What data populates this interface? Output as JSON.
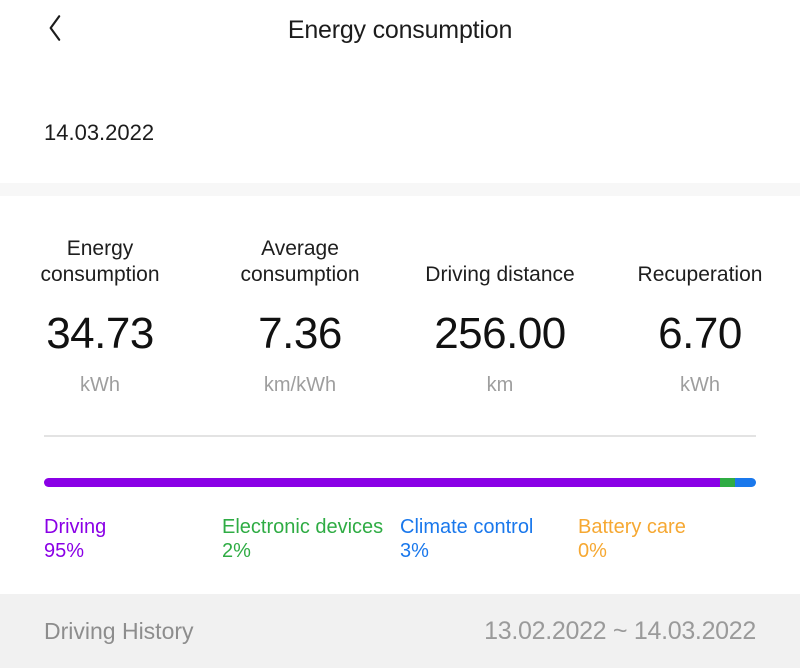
{
  "header": {
    "title": "Energy consumption"
  },
  "date_label": "14.03.2022",
  "stats": [
    {
      "label": "Energy consumption",
      "value": "34.73",
      "unit": "kWh"
    },
    {
      "label": "Average consumption",
      "value": "7.36",
      "unit": "km/kWh"
    },
    {
      "label": "Driving distance",
      "value": "256.00",
      "unit": "km"
    },
    {
      "label": "Recuperation",
      "value": "6.70",
      "unit": "kWh"
    }
  ],
  "breakdown": {
    "type": "stacked-bar",
    "items": [
      {
        "label": "Driving",
        "percent": 95,
        "percent_label": "95%",
        "color": "#8A00E6"
      },
      {
        "label": "Electronic devices",
        "percent": 2,
        "percent_label": "2%",
        "color": "#2FAC44"
      },
      {
        "label": "Climate control",
        "percent": 3,
        "percent_label": "3%",
        "color": "#1A78EC"
      },
      {
        "label": "Battery care",
        "percent": 0,
        "percent_label": "0%",
        "color": "#F6A832"
      }
    ]
  },
  "footer": {
    "title": "Driving History",
    "date_range": "13.02.2022 ~ 14.03.2022"
  }
}
